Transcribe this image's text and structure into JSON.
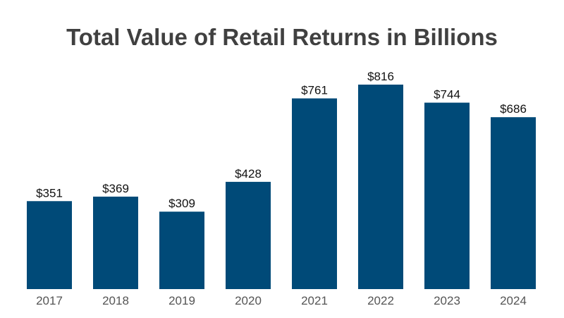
{
  "chart_data": {
    "type": "bar",
    "title": "Total Value of Retail Returns in Billions",
    "xlabel": "",
    "ylabel": "",
    "categories": [
      "2017",
      "2018",
      "2019",
      "2020",
      "2021",
      "2022",
      "2023",
      "2024"
    ],
    "values": [
      351,
      369,
      309,
      428,
      761,
      816,
      744,
      686
    ],
    "data_labels": [
      "$351",
      "$369",
      "$309",
      "$428",
      "$761",
      "$816",
      "$744",
      "$686"
    ],
    "grid": false,
    "bar_color": "#004a78"
  }
}
